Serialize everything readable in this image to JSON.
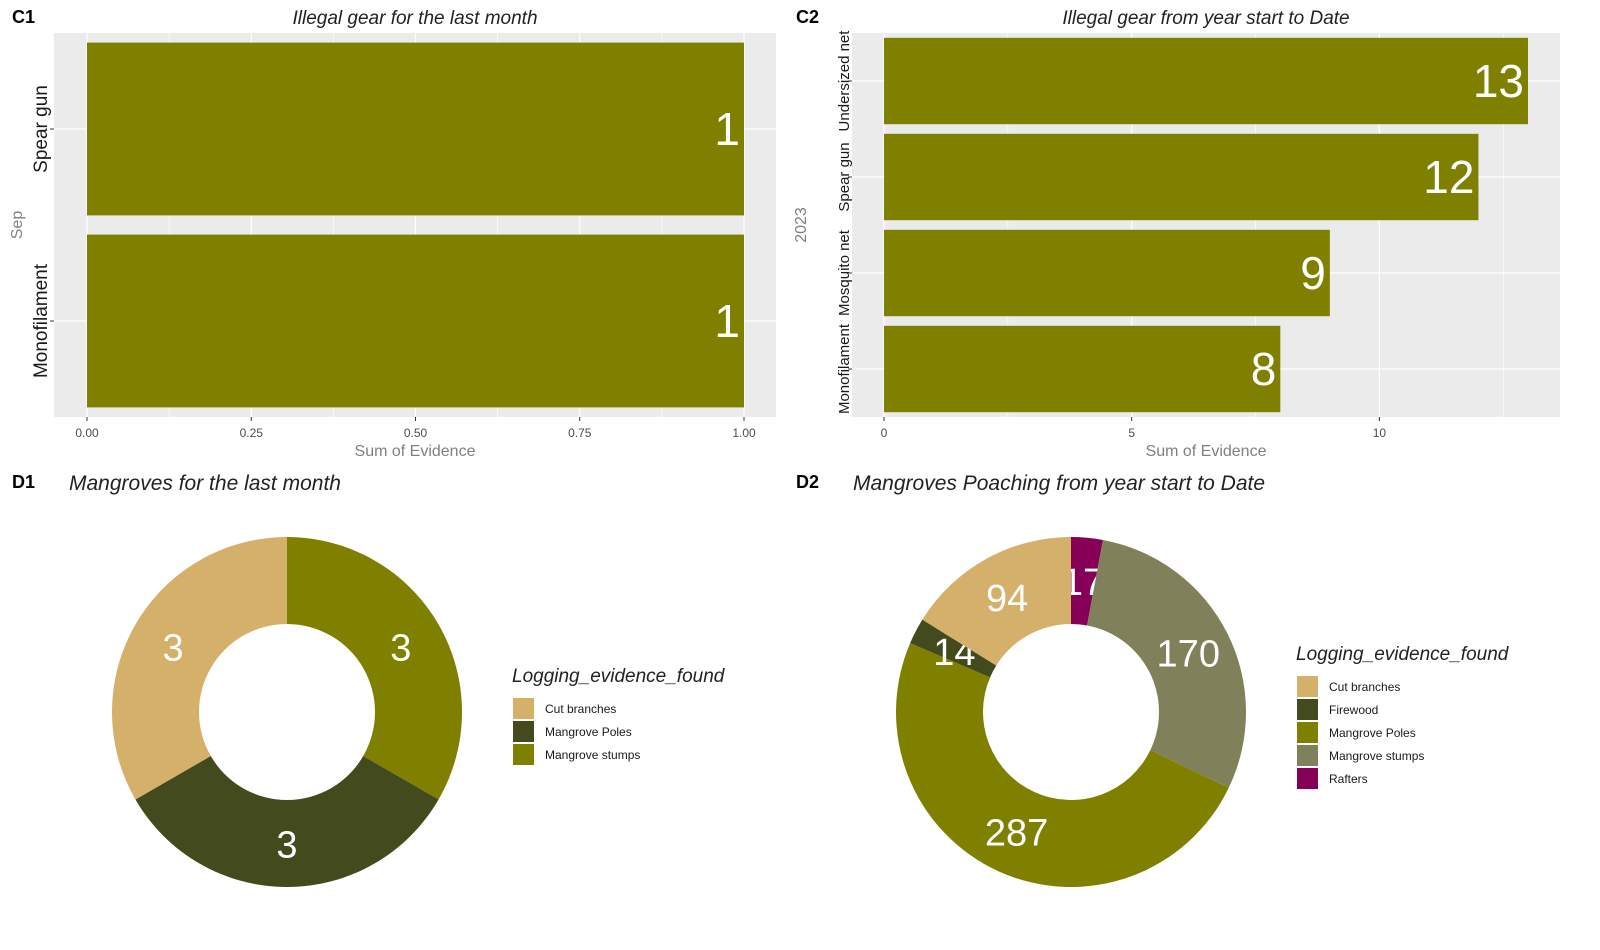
{
  "colors": {
    "bar": "#808000",
    "panel": "#ebebeb",
    "grid": "#ffffff"
  },
  "chart_data": [
    {
      "tag": "C1",
      "type": "bar",
      "orientation": "horizontal",
      "title": "Illegal gear for the last month",
      "xlabel": "Sum of Evidence",
      "group_label": "Sep",
      "categories": [
        "Spear gun",
        "Monofilament"
      ],
      "values": [
        1,
        1
      ],
      "xlim": [
        0,
        1
      ],
      "xticks": [
        "0.00",
        "0.25",
        "0.50",
        "0.75",
        "1.00"
      ],
      "xtick_values": [
        0,
        0.25,
        0.5,
        0.75,
        1
      ],
      "grid": true
    },
    {
      "tag": "C2",
      "type": "bar",
      "orientation": "horizontal",
      "title": "Illegal gear from year start to Date",
      "xlabel": "Sum of Evidence",
      "group_label": "2023",
      "categories": [
        "Undersized net",
        "Spear gun",
        "Mosquito net",
        "Monofilament"
      ],
      "values": [
        13,
        12,
        9,
        8
      ],
      "xlim": [
        0,
        13
      ],
      "xticks": [
        "0",
        "5",
        "10"
      ],
      "xtick_values": [
        0,
        5,
        10
      ],
      "grid": true
    },
    {
      "tag": "D1",
      "type": "pie",
      "donut": true,
      "title": "Mangroves for the last month",
      "legend_title": "Logging_evidence_found",
      "legend_position": "right",
      "legend": [
        {
          "label": "Cut branches",
          "color": "#d4b06a"
        },
        {
          "label": "Mangrove Poles",
          "color": "#434a1e"
        },
        {
          "label": "Mangrove stumps",
          "color": "#808000"
        }
      ],
      "slices": [
        {
          "label": "Mangrove stumps",
          "value": 3,
          "color": "#808000"
        },
        {
          "label": "Mangrove Poles",
          "value": 3,
          "color": "#434a1e"
        },
        {
          "label": "Cut branches",
          "value": 3,
          "color": "#d4b06a"
        }
      ]
    },
    {
      "tag": "D2",
      "type": "pie",
      "donut": true,
      "title": "Mangroves Poaching from year start to Date",
      "legend_title": "Logging_evidence_found",
      "legend_position": "right",
      "legend": [
        {
          "label": "Cut branches",
          "color": "#d4b06a"
        },
        {
          "label": "Firewood",
          "color": "#434a1e"
        },
        {
          "label": "Mangrove Poles",
          "color": "#808000"
        },
        {
          "label": "Mangrove stumps",
          "color": "#80805a"
        },
        {
          "label": "Rafters",
          "color": "#870057"
        }
      ],
      "slices": [
        {
          "label": "Rafters",
          "value": 17,
          "color": "#870057"
        },
        {
          "label": "Mangrove stumps",
          "value": 170,
          "color": "#80805a"
        },
        {
          "label": "Mangrove Poles",
          "value": 287,
          "color": "#808000"
        },
        {
          "label": "Firewood",
          "value": 14,
          "color": "#434a1e"
        },
        {
          "label": "Cut branches",
          "value": 94,
          "color": "#d4b06a"
        }
      ]
    }
  ]
}
